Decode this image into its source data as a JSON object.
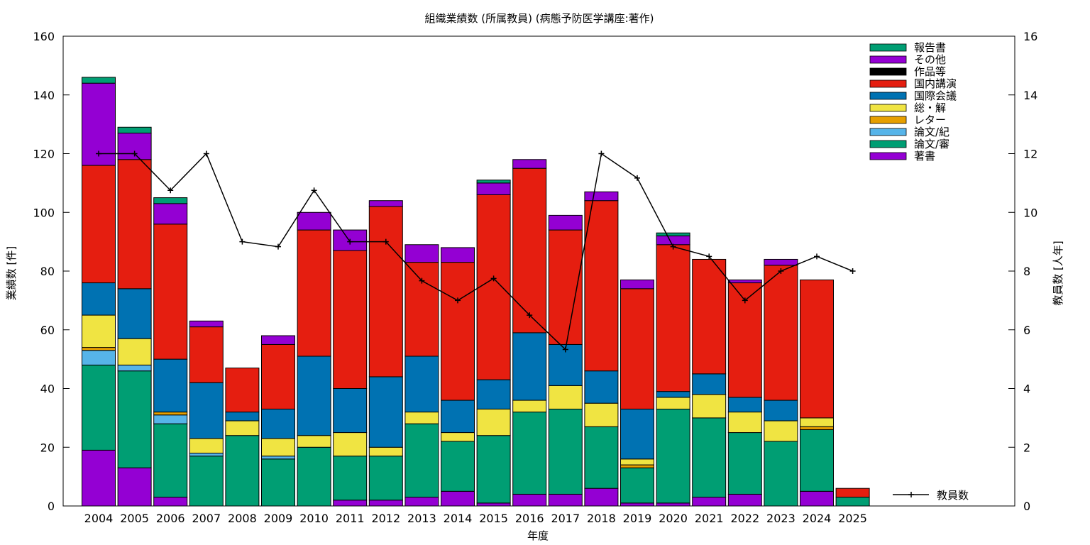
{
  "chart_data": {
    "type": "bar",
    "title": "組織業績数 (所属教員) (病態予防医学講座:著作)",
    "xlabel": "年度",
    "ylabel": "業績数 [件]",
    "y2label": "教員数 [人年]",
    "ylim": [
      0,
      160
    ],
    "y2lim": [
      0,
      16
    ],
    "yticks": [
      "0",
      "20",
      "40",
      "60",
      "80",
      "100",
      "120",
      "140",
      "160"
    ],
    "y2ticks": [
      "0",
      "2",
      "4",
      "6",
      "8",
      "10",
      "12",
      "14",
      "16"
    ],
    "legend_position": "top-right",
    "categories": [
      "2004",
      "2005",
      "2006",
      "2007",
      "2008",
      "2009",
      "2010",
      "2011",
      "2012",
      "2013",
      "2014",
      "2015",
      "2016",
      "2017",
      "2018",
      "2019",
      "2020",
      "2021",
      "2022",
      "2023",
      "2024",
      "2025"
    ],
    "stacked": true,
    "series": [
      {
        "name": "著書",
        "color": "#9400d3",
        "values": [
          19,
          13,
          3,
          0,
          0,
          0,
          0,
          2,
          2,
          3,
          5,
          1,
          4,
          4,
          6,
          1,
          1,
          3,
          4,
          0,
          5,
          0
        ]
      },
      {
        "name": "論文/審",
        "color": "#009e73",
        "values": [
          29,
          33,
          25,
          17,
          24,
          16,
          20,
          15,
          15,
          25,
          17,
          23,
          28,
          29,
          21,
          12,
          32,
          27,
          21,
          22,
          21,
          3
        ]
      },
      {
        "name": "論文/紀",
        "color": "#56b4e9",
        "values": [
          5,
          2,
          3,
          1,
          0,
          1,
          0,
          0,
          0,
          0,
          0,
          0,
          0,
          0,
          0,
          0,
          0,
          0,
          0,
          0,
          0,
          0
        ]
      },
      {
        "name": "レター",
        "color": "#e69f00",
        "values": [
          1,
          0,
          1,
          0,
          0,
          0,
          0,
          0,
          0,
          0,
          0,
          0,
          0,
          0,
          0,
          1,
          0,
          0,
          0,
          0,
          1,
          0
        ]
      },
      {
        "name": "総・解",
        "color": "#f0e442",
        "values": [
          11,
          9,
          0,
          5,
          5,
          6,
          4,
          8,
          3,
          4,
          3,
          9,
          4,
          8,
          8,
          2,
          4,
          8,
          7,
          7,
          3,
          0
        ]
      },
      {
        "name": "国際会議",
        "color": "#0072b2",
        "values": [
          11,
          17,
          18,
          19,
          3,
          10,
          27,
          15,
          24,
          19,
          11,
          10,
          23,
          14,
          11,
          17,
          2,
          7,
          5,
          7,
          0,
          0
        ]
      },
      {
        "name": "国内講演",
        "color": "#e51e10",
        "values": [
          40,
          44,
          46,
          19,
          15,
          22,
          43,
          47,
          58,
          32,
          47,
          63,
          56,
          39,
          58,
          41,
          50,
          39,
          39,
          46,
          47,
          3
        ]
      },
      {
        "name": "作品等",
        "color": "#000000",
        "values": [
          0,
          0,
          0,
          0,
          0,
          0,
          0,
          0,
          0,
          0,
          0,
          0,
          0,
          0,
          0,
          0,
          0,
          0,
          0,
          0,
          0,
          0
        ]
      },
      {
        "name": "その他",
        "color": "#9400d3",
        "values": [
          28,
          9,
          7,
          2,
          0,
          3,
          6,
          7,
          2,
          6,
          5,
          4,
          3,
          5,
          3,
          3,
          3,
          0,
          1,
          2,
          0,
          0
        ]
      },
      {
        "name": "報告書",
        "color": "#009e73",
        "values": [
          2,
          2,
          2,
          0,
          0,
          0,
          0,
          0,
          0,
          0,
          0,
          1,
          0,
          0,
          0,
          0,
          1,
          0,
          0,
          0,
          0,
          0
        ]
      }
    ],
    "line_series": {
      "name": "教員数",
      "color": "#000000",
      "x": [
        "2004",
        "2005",
        "2006",
        "2007",
        "2008",
        "2009",
        "2010",
        "2011",
        "2012",
        "2013",
        "2014",
        "2015",
        "2016",
        "2017",
        "2018",
        "2019",
        "2020",
        "2021",
        "2022",
        "2023",
        "2024",
        "2025"
      ],
      "values": [
        12,
        12,
        10.75,
        12,
        9,
        8.83,
        10.75,
        9,
        9,
        7.67,
        7,
        7.75,
        6.5,
        5.33,
        12,
        11.17,
        8.83,
        8.5,
        7,
        8,
        8.5,
        8
      ]
    }
  }
}
